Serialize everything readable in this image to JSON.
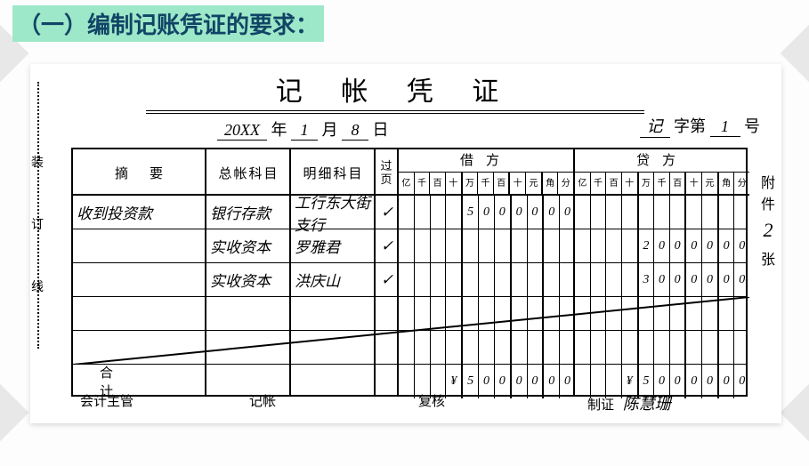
{
  "heading": "（一）编制记账凭证的要求：",
  "voucher": {
    "title": "记 帐 凭 证",
    "date": {
      "year_hand": "20XX",
      "year_suffix": "年",
      "month_hand": "1",
      "month_suffix": "月",
      "day_hand": "8",
      "day_suffix": "日"
    },
    "serial": {
      "prefix_hand": "记",
      "mid": "字第",
      "num_hand": "1",
      "suffix": "号"
    },
    "binding_chars": [
      "装",
      "订",
      "线"
    ],
    "headers": {
      "summary": "摘要",
      "gl": "总帐科目",
      "detail": "明细科目",
      "page": "过页",
      "debit": "借方",
      "credit": "贷方"
    },
    "units": [
      "亿",
      "千",
      "百",
      "十",
      "万",
      "千",
      "百",
      "十",
      "元",
      "角",
      "分"
    ],
    "rows": [
      {
        "summary": "收到投资款",
        "gl": "银行存款",
        "detail": "工行东大街支行",
        "page": "✓",
        "debit": [
          "",
          "",
          "",
          "",
          "5",
          "0",
          "0",
          "0",
          "0",
          "0",
          "0"
        ],
        "credit": [
          "",
          "",
          "",
          "",
          "",
          "",
          "",
          "",
          "",
          "",
          ""
        ]
      },
      {
        "summary": "",
        "gl": "实收资本",
        "detail": "罗雅君",
        "page": "✓",
        "debit": [
          "",
          "",
          "",
          "",
          "",
          "",
          "",
          "",
          "",
          "",
          ""
        ],
        "credit": [
          "",
          "",
          "",
          "",
          "2",
          "0",
          "0",
          "0",
          "0",
          "0",
          "0"
        ]
      },
      {
        "summary": "",
        "gl": "实收资本",
        "detail": "洪庆山",
        "page": "✓",
        "debit": [
          "",
          "",
          "",
          "",
          "",
          "",
          "",
          "",
          "",
          "",
          ""
        ],
        "credit": [
          "",
          "",
          "",
          "",
          "3",
          "0",
          "0",
          "0",
          "0",
          "0",
          "0"
        ]
      },
      {
        "summary": "",
        "gl": "",
        "detail": "",
        "page": "",
        "debit": [
          "",
          "",
          "",
          "",
          "",
          "",
          "",
          "",
          "",
          "",
          ""
        ],
        "credit": [
          "",
          "",
          "",
          "",
          "",
          "",
          "",
          "",
          "",
          "",
          ""
        ]
      },
      {
        "summary": "",
        "gl": "",
        "detail": "",
        "page": "",
        "debit": [
          "",
          "",
          "",
          "",
          "",
          "",
          "",
          "",
          "",
          "",
          ""
        ],
        "credit": [
          "",
          "",
          "",
          "",
          "",
          "",
          "",
          "",
          "",
          "",
          ""
        ]
      }
    ],
    "total": {
      "label": "合计",
      "debit": [
        "",
        "",
        "",
        "¥",
        "5",
        "0",
        "0",
        "0",
        "0",
        "0",
        "0"
      ],
      "credit": [
        "",
        "",
        "",
        "¥",
        "5",
        "0",
        "0",
        "0",
        "0",
        "0",
        "0"
      ]
    },
    "attach": {
      "label_top": "附件",
      "count": "2",
      "label_bot": "张"
    },
    "signatures": {
      "supervisor": "会计主管",
      "bookkeeper": "记帐",
      "reviewer": "复核",
      "preparer": "制证",
      "preparer_name": "陈慧珊"
    }
  },
  "style": {
    "heading_bg": "#9de8c8",
    "heading_color": "#114466",
    "ink": "#000000",
    "thick_cols": [
      3,
      6,
      8
    ]
  }
}
